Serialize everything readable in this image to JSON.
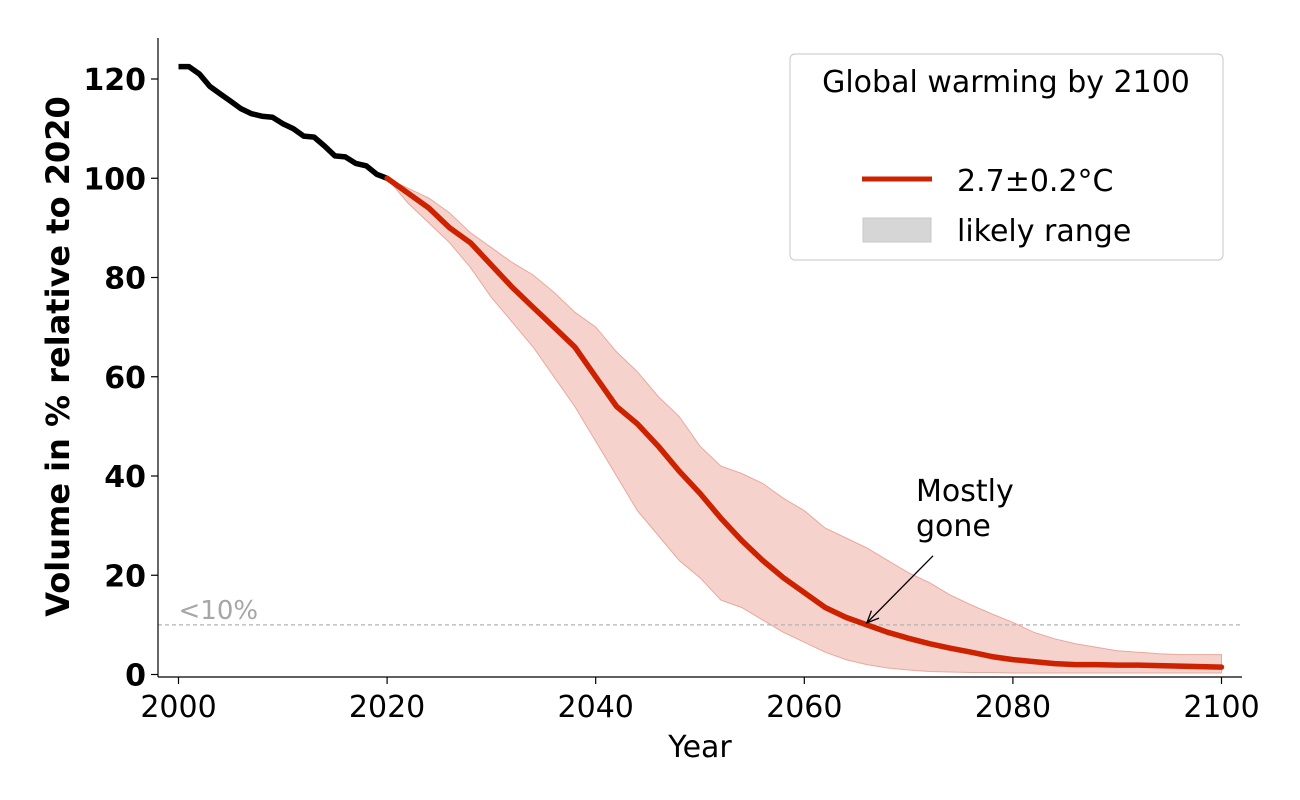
{
  "chart_data": {
    "type": "line",
    "title": "",
    "xlabel": "Year",
    "ylabel": "Volume in % relative to 2020",
    "xlim": [
      1998,
      2102
    ],
    "ylim": [
      0,
      128
    ],
    "xticks": [
      2000,
      2020,
      2040,
      2060,
      2080,
      2100
    ],
    "yticks": [
      0,
      20,
      40,
      60,
      80,
      100,
      120
    ],
    "xtick_labels": [
      "2000",
      "2020",
      "2040",
      "2060",
      "2080",
      "2100"
    ],
    "ytick_labels": [
      "0",
      "20",
      "40",
      "60",
      "80",
      "100",
      "120"
    ],
    "grid": false,
    "colors": {
      "observed": "#000000",
      "projection": "#cc2200",
      "band": "#f6d2cc",
      "band_edge": "#e8a89c",
      "threshold": "#b3b3b3",
      "legend_patch": "#d6d6d6"
    },
    "observed": {
      "name": "observed",
      "x": [
        2000,
        2001,
        2002,
        2003,
        2004,
        2005,
        2006,
        2007,
        2008,
        2009,
        2010,
        2011,
        2012,
        2013,
        2014,
        2015,
        2016,
        2017,
        2018,
        2019,
        2020
      ],
      "y": [
        122.5,
        122.5,
        121,
        118.5,
        117,
        115.5,
        114,
        113,
        112.5,
        112.3,
        111,
        110,
        108.5,
        108.3,
        106.5,
        104.5,
        104.3,
        103,
        102.5,
        100.8,
        100
      ]
    },
    "projection": {
      "name": "2.7±0.2°C",
      "x": [
        2020,
        2022,
        2024,
        2026,
        2028,
        2030,
        2032,
        2034,
        2036,
        2038,
        2040,
        2042,
        2044,
        2046,
        2048,
        2050,
        2052,
        2054,
        2056,
        2058,
        2060,
        2062,
        2064,
        2066,
        2068,
        2070,
        2072,
        2074,
        2076,
        2078,
        2080,
        2082,
        2084,
        2086,
        2088,
        2090,
        2092,
        2094,
        2096,
        2098,
        2100
      ],
      "y": [
        100,
        97,
        94,
        90,
        87,
        82.5,
        78,
        74,
        70,
        66,
        60,
        54,
        50.5,
        46,
        41,
        36.5,
        31.5,
        27,
        23,
        19.5,
        16.5,
        13.5,
        11.5,
        10,
        8.5,
        7.3,
        6.2,
        5.3,
        4.5,
        3.6,
        3.0,
        2.6,
        2.2,
        2.0,
        2.0,
        1.9,
        1.9,
        1.8,
        1.7,
        1.6,
        1.5
      ]
    },
    "band": {
      "name": "likely range",
      "x": [
        2020,
        2022,
        2024,
        2026,
        2028,
        2030,
        2032,
        2034,
        2036,
        2038,
        2040,
        2042,
        2044,
        2046,
        2048,
        2050,
        2052,
        2054,
        2056,
        2058,
        2060,
        2062,
        2064,
        2066,
        2068,
        2070,
        2072,
        2074,
        2076,
        2078,
        2080,
        2082,
        2084,
        2086,
        2088,
        2090,
        2092,
        2094,
        2096,
        2098,
        2100
      ],
      "upper": [
        100,
        98,
        96,
        93,
        89,
        86,
        83,
        80.5,
        77,
        73,
        70,
        65,
        61,
        56,
        52,
        46,
        42,
        40.5,
        38.5,
        35.5,
        33,
        29.5,
        27.5,
        25.5,
        23,
        20.5,
        18.5,
        16,
        14,
        12.2,
        10.5,
        8.5,
        7.2,
        6.2,
        5.5,
        4.8,
        4.5,
        4.2,
        4.0,
        4.0,
        4.0
      ],
      "lower": [
        100,
        95,
        91,
        87,
        82,
        76,
        71,
        66,
        60,
        54,
        47,
        40,
        33,
        28,
        23,
        19.5,
        15,
        13.5,
        11,
        8.5,
        6.5,
        4.5,
        3.0,
        2.0,
        1.3,
        0.9,
        0.6,
        0.5,
        0.4,
        0.4,
        0.3,
        0.3,
        0.3,
        0.3,
        0.3,
        0.3,
        0.3,
        0.3,
        0.3,
        0.3,
        0.3
      ]
    },
    "threshold": {
      "y": 10,
      "label": "<10%"
    },
    "annotation": {
      "lines": [
        "Mostly",
        "gone"
      ],
      "target": {
        "x": 2066,
        "y": 10
      },
      "text_at": {
        "x": 2071,
        "y": 34
      }
    },
    "legend": {
      "title": "Global warming by 2100",
      "placement": "top-right",
      "entries": [
        {
          "label": "2.7±0.2°C",
          "kind": "line"
        },
        {
          "label": "likely range",
          "kind": "patch"
        }
      ]
    }
  }
}
